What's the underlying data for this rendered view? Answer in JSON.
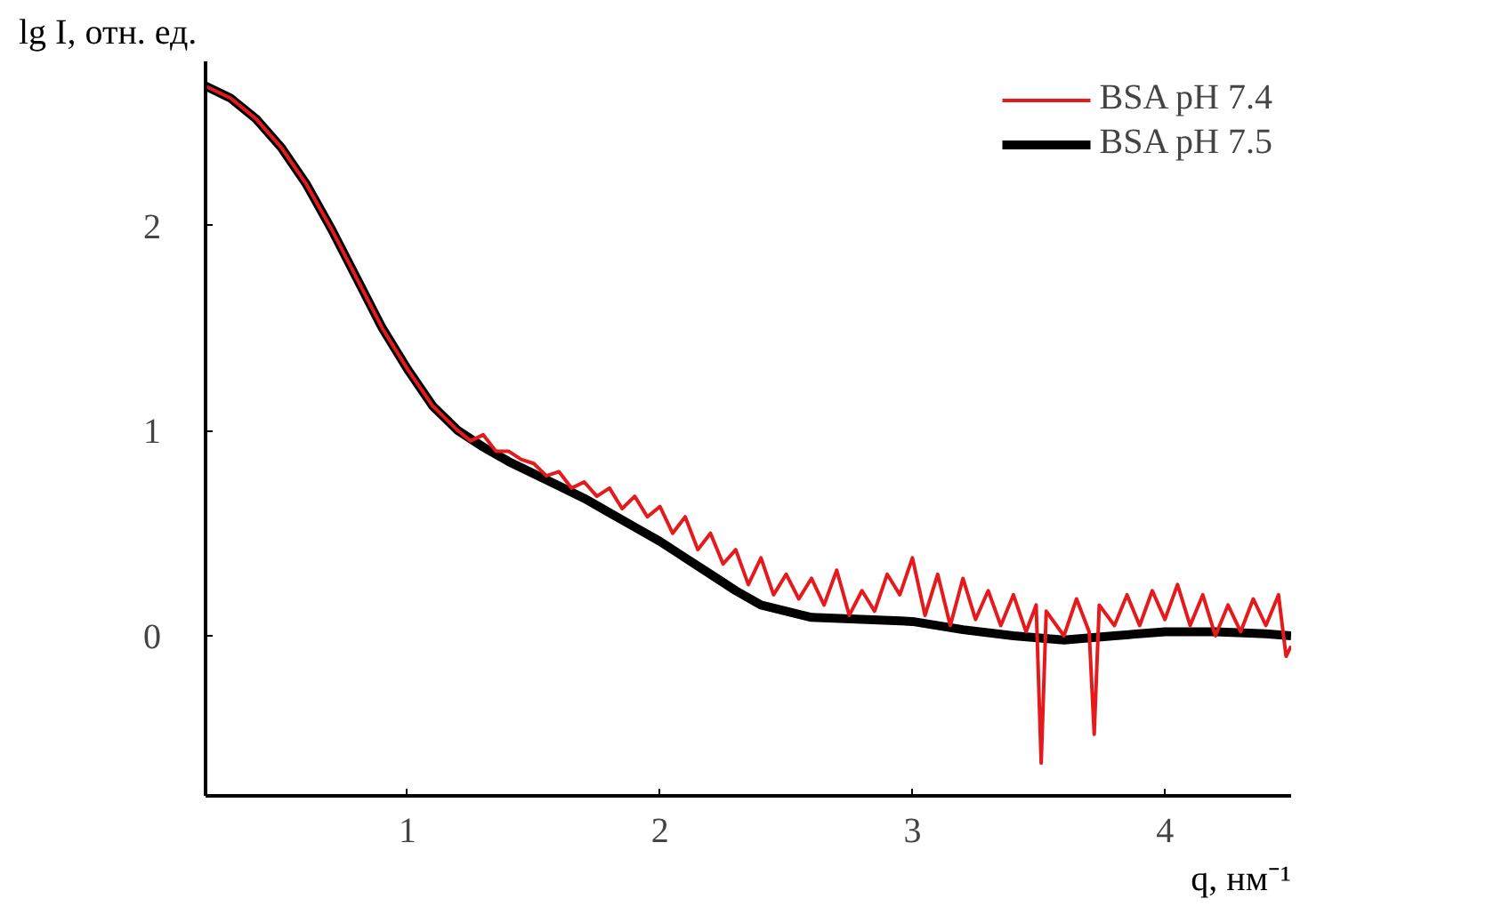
{
  "chart_data": {
    "type": "line",
    "xlabel": "q, нм⁻¹",
    "ylabel": "lg I, отн. ед.",
    "xlim": [
      0.2,
      4.5
    ],
    "ylim": [
      -0.78,
      2.8
    ],
    "xticks": [
      1,
      2,
      3,
      4
    ],
    "yticks": [
      0,
      1,
      2
    ],
    "grid": false,
    "legend": "top right",
    "line_style": "solid",
    "marker": "none",
    "series": [
      {
        "name": "BSA pH 7.4",
        "color": "#e41a1c",
        "x": [
          0.2,
          0.3,
          0.4,
          0.5,
          0.6,
          0.7,
          0.8,
          0.9,
          1.0,
          1.1,
          1.2,
          1.25,
          1.3,
          1.35,
          1.4,
          1.45,
          1.5,
          1.55,
          1.6,
          1.65,
          1.7,
          1.75,
          1.8,
          1.85,
          1.9,
          1.95,
          2.0,
          2.05,
          2.1,
          2.15,
          2.2,
          2.25,
          2.3,
          2.35,
          2.4,
          2.45,
          2.5,
          2.55,
          2.6,
          2.65,
          2.7,
          2.75,
          2.8,
          2.85,
          2.9,
          2.95,
          3.0,
          3.05,
          3.1,
          3.15,
          3.2,
          3.25,
          3.3,
          3.35,
          3.4,
          3.45,
          3.49,
          3.51,
          3.53,
          3.6,
          3.65,
          3.7,
          3.72,
          3.74,
          3.8,
          3.85,
          3.9,
          3.95,
          4.0,
          4.05,
          4.1,
          4.15,
          4.2,
          4.25,
          4.3,
          4.35,
          4.4,
          4.45,
          4.48,
          4.5
        ],
        "values": [
          2.68,
          2.62,
          2.52,
          2.38,
          2.2,
          1.98,
          1.74,
          1.5,
          1.3,
          1.12,
          1.0,
          0.95,
          0.98,
          0.9,
          0.9,
          0.86,
          0.84,
          0.78,
          0.8,
          0.72,
          0.75,
          0.68,
          0.72,
          0.62,
          0.68,
          0.58,
          0.63,
          0.5,
          0.58,
          0.42,
          0.5,
          0.35,
          0.42,
          0.25,
          0.38,
          0.2,
          0.3,
          0.18,
          0.28,
          0.15,
          0.32,
          0.1,
          0.22,
          0.12,
          0.3,
          0.2,
          0.38,
          0.1,
          0.3,
          0.05,
          0.28,
          0.08,
          0.22,
          0.05,
          0.2,
          0.02,
          0.15,
          -0.62,
          0.12,
          0.0,
          0.18,
          0.02,
          -0.48,
          0.15,
          0.05,
          0.2,
          0.05,
          0.22,
          0.08,
          0.25,
          0.05,
          0.2,
          0.0,
          0.15,
          0.02,
          0.18,
          0.05,
          0.2,
          -0.1,
          -0.05
        ]
      },
      {
        "name": "BSA pH 7.5",
        "color": "#000000",
        "x": [
          0.2,
          0.3,
          0.4,
          0.5,
          0.6,
          0.7,
          0.8,
          0.9,
          1.0,
          1.1,
          1.2,
          1.3,
          1.4,
          1.5,
          1.6,
          1.7,
          1.8,
          1.9,
          2.0,
          2.1,
          2.2,
          2.3,
          2.4,
          2.5,
          2.6,
          2.8,
          3.0,
          3.2,
          3.4,
          3.6,
          3.8,
          4.0,
          4.2,
          4.4,
          4.5
        ],
        "values": [
          2.68,
          2.62,
          2.52,
          2.38,
          2.2,
          1.98,
          1.74,
          1.5,
          1.3,
          1.12,
          1.0,
          0.92,
          0.85,
          0.79,
          0.73,
          0.67,
          0.6,
          0.53,
          0.46,
          0.38,
          0.3,
          0.22,
          0.15,
          0.12,
          0.09,
          0.08,
          0.07,
          0.03,
          0.0,
          -0.02,
          0.0,
          0.02,
          0.02,
          0.01,
          0.0
        ]
      }
    ]
  }
}
